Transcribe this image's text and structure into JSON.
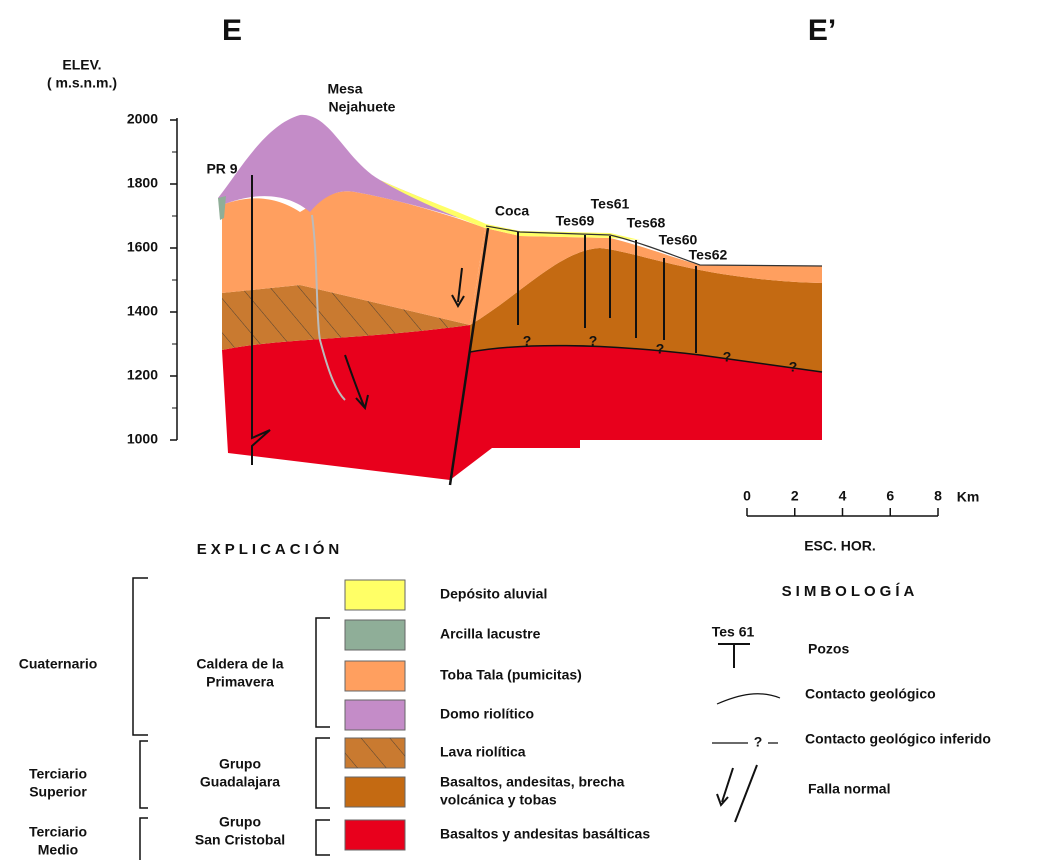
{
  "section": {
    "left_label": "E",
    "right_label": "E’",
    "axis_title": [
      "ELEV.",
      "( m.s.n.m.)"
    ],
    "elevation_ticks": [
      1000,
      1200,
      1400,
      1600,
      1800,
      2000
    ],
    "peak_label": [
      "Mesa",
      "Nejahuete"
    ],
    "wells": [
      "PR 9",
      "Coca",
      "Tes69",
      "Tes61",
      "Tes68",
      "Tes60",
      "Tes62"
    ],
    "inferred_mark": "?"
  },
  "scale": {
    "ticks": [
      0,
      2,
      4,
      6,
      8
    ],
    "unit": "Km",
    "caption": "ESC. HOR."
  },
  "legend": {
    "title": "EXPLICACIÓN",
    "periods": [
      [
        "Cuaternario"
      ],
      [
        "Terciario",
        "Superior"
      ],
      [
        "Terciario",
        "Medio"
      ]
    ],
    "groups": [
      [
        "Caldera de la",
        "Primavera"
      ],
      [
        "Grupo",
        "Guadalajara"
      ],
      [
        "Grupo",
        "San Cristobal"
      ]
    ],
    "units": [
      {
        "label": [
          "Depósito aluvial"
        ],
        "color": "#ffff66"
      },
      {
        "label": [
          "Arcilla lacustre"
        ],
        "color": "#8fae98"
      },
      {
        "label": [
          "Toba Tala (pumicitas)"
        ],
        "color": "#ff9f5f"
      },
      {
        "label": [
          "Domo riolítico"
        ],
        "color": "#c48cc8"
      },
      {
        "label": [
          "Lava riolítica"
        ],
        "color": "#c97a30"
      },
      {
        "label": [
          "Basaltos, andesitas, brecha",
          "volcánica y tobas"
        ],
        "color": "#c46a12"
      },
      {
        "label": [
          "Basaltos y andesitas basálticas"
        ],
        "color": "#e8001c"
      }
    ]
  },
  "symbols": {
    "title": "SIMBOLOGÍA",
    "well_example": "Tes 61",
    "items": [
      "Pozos",
      "Contacto geológico",
      "Contacto geológico inferido",
      "Falla normal"
    ]
  }
}
